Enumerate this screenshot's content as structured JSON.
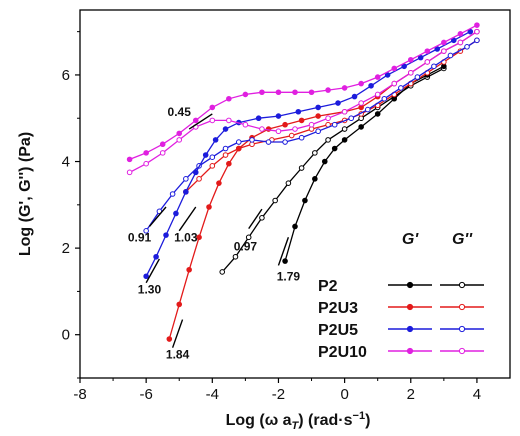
{
  "chart_data": {
    "type": "line",
    "title": "",
    "xlabel": "Log (ω a",
    "xlabel_sub": "T",
    "xlabel_units": ") (rad·s",
    "xlabel_sup": "−1",
    "xlabel_close": ")",
    "ylabel": "Log (G', G'') (Pa)",
    "xlim": [
      -8,
      5
    ],
    "ylim": [
      -1,
      7.5
    ],
    "xticks": [
      -8,
      -6,
      -4,
      -2,
      0,
      2,
      4
    ],
    "xtick_labels": [
      "-8",
      "-6",
      "-4",
      "-2",
      "0",
      "2",
      "4"
    ],
    "yticks": [
      0,
      2,
      4,
      6
    ],
    "ytick_labels": [
      "0",
      "2",
      "4",
      "6"
    ],
    "grid": false,
    "legend_position": "bottom-right",
    "legend_headers": [
      "G'",
      "G''"
    ],
    "series": [
      {
        "name": "P2",
        "color": "#000000",
        "gprime": [
          [
            -1.8,
            1.7
          ],
          [
            -1.5,
            2.5
          ],
          [
            -1.2,
            3.1
          ],
          [
            -0.9,
            3.6
          ],
          [
            -0.6,
            4.0
          ],
          [
            -0.3,
            4.3
          ],
          [
            0,
            4.5
          ],
          [
            0.5,
            4.8
          ],
          [
            1.0,
            5.1
          ],
          [
            1.5,
            5.45
          ],
          [
            2.0,
            5.8
          ],
          [
            2.5,
            6.0
          ],
          [
            3.0,
            6.2
          ]
        ],
        "gdoubleprime": [
          [
            -3.7,
            1.45
          ],
          [
            -3.3,
            1.8
          ],
          [
            -2.9,
            2.25
          ],
          [
            -2.5,
            2.7
          ],
          [
            -2.1,
            3.1
          ],
          [
            -1.7,
            3.5
          ],
          [
            -1.3,
            3.85
          ],
          [
            -0.9,
            4.2
          ],
          [
            -0.5,
            4.5
          ],
          [
            0,
            4.75
          ],
          [
            0.5,
            5.0
          ],
          [
            1.0,
            5.25
          ],
          [
            1.5,
            5.5
          ],
          [
            2.0,
            5.75
          ],
          [
            2.5,
            5.95
          ],
          [
            3.0,
            6.15
          ]
        ]
      },
      {
        "name": "P2U3",
        "color": "#e31a1a",
        "gprime": [
          [
            -5.3,
            -0.1
          ],
          [
            -5.0,
            0.7
          ],
          [
            -4.7,
            1.5
          ],
          [
            -4.4,
            2.25
          ],
          [
            -4.1,
            2.95
          ],
          [
            -3.8,
            3.5
          ],
          [
            -3.5,
            3.95
          ],
          [
            -3.2,
            4.3
          ],
          [
            -2.8,
            4.55
          ],
          [
            -2.3,
            4.75
          ],
          [
            -1.8,
            4.85
          ],
          [
            -1.3,
            4.95
          ],
          [
            -0.8,
            5.05
          ],
          [
            0,
            5.15
          ],
          [
            0.5,
            5.25
          ],
          [
            1.0,
            5.5
          ],
          [
            1.5,
            5.8
          ],
          [
            2.0,
            6.05
          ],
          [
            2.5,
            6.3
          ],
          [
            3.0,
            6.55
          ],
          [
            3.5,
            6.75
          ],
          [
            4.0,
            7.0
          ]
        ],
        "gdoubleprime": [
          [
            -4.8,
            3.3
          ],
          [
            -4.4,
            3.6
          ],
          [
            -4.0,
            3.9
          ],
          [
            -3.6,
            4.15
          ],
          [
            -3.2,
            4.3
          ],
          [
            -2.8,
            4.4
          ],
          [
            -2.2,
            4.5
          ],
          [
            -1.6,
            4.6
          ],
          [
            -1.0,
            4.75
          ],
          [
            -0.5,
            4.85
          ],
          [
            0,
            4.95
          ],
          [
            0.5,
            5.1
          ],
          [
            1.0,
            5.3
          ],
          [
            1.5,
            5.55
          ],
          [
            2.0,
            5.8
          ],
          [
            2.5,
            6.05
          ],
          [
            3.0,
            6.3
          ],
          [
            3.5,
            6.55
          ],
          [
            4.0,
            6.8
          ]
        ]
      },
      {
        "name": "P2U5",
        "color": "#1c1cdc",
        "gprime": [
          [
            -6.0,
            1.35
          ],
          [
            -5.7,
            1.8
          ],
          [
            -5.4,
            2.3
          ],
          [
            -5.1,
            2.8
          ],
          [
            -4.8,
            3.3
          ],
          [
            -4.5,
            3.75
          ],
          [
            -4.2,
            4.15
          ],
          [
            -3.9,
            4.5
          ],
          [
            -3.6,
            4.75
          ],
          [
            -3.2,
            4.9
          ],
          [
            -2.6,
            5.0
          ],
          [
            -2.0,
            5.05
          ],
          [
            -1.4,
            5.15
          ],
          [
            -0.8,
            5.25
          ],
          [
            -0.2,
            5.35
          ],
          [
            0.3,
            5.5
          ],
          [
            0.8,
            5.75
          ],
          [
            1.3,
            6.0
          ],
          [
            1.8,
            6.2
          ],
          [
            2.3,
            6.4
          ],
          [
            2.8,
            6.6
          ],
          [
            3.3,
            6.8
          ],
          [
            3.8,
            7.0
          ]
        ],
        "gdoubleprime": [
          [
            -6.0,
            2.4
          ],
          [
            -5.6,
            2.85
          ],
          [
            -5.2,
            3.25
          ],
          [
            -4.8,
            3.6
          ],
          [
            -4.4,
            3.9
          ],
          [
            -4.0,
            4.1
          ],
          [
            -3.6,
            4.3
          ],
          [
            -3.2,
            4.45
          ],
          [
            -2.8,
            4.5
          ],
          [
            -2.3,
            4.45
          ],
          [
            -1.8,
            4.45
          ],
          [
            -1.3,
            4.55
          ],
          [
            -0.8,
            4.7
          ],
          [
            -0.3,
            4.85
          ],
          [
            0.2,
            5.0
          ],
          [
            0.7,
            5.2
          ],
          [
            1.2,
            5.45
          ],
          [
            1.7,
            5.7
          ],
          [
            2.2,
            5.95
          ],
          [
            2.7,
            6.2
          ],
          [
            3.2,
            6.45
          ],
          [
            3.7,
            6.65
          ],
          [
            4.0,
            6.8
          ]
        ]
      },
      {
        "name": "P2U10",
        "color": "#e020e0",
        "gprime": [
          [
            -6.5,
            4.05
          ],
          [
            -6.0,
            4.2
          ],
          [
            -5.5,
            4.4
          ],
          [
            -5.0,
            4.65
          ],
          [
            -4.5,
            4.95
          ],
          [
            -4.0,
            5.25
          ],
          [
            -3.5,
            5.45
          ],
          [
            -3.0,
            5.55
          ],
          [
            -2.5,
            5.6
          ],
          [
            -2.0,
            5.6
          ],
          [
            -1.5,
            5.6
          ],
          [
            -1.0,
            5.6
          ],
          [
            -0.5,
            5.65
          ],
          [
            0,
            5.7
          ],
          [
            0.5,
            5.8
          ],
          [
            1.0,
            5.95
          ],
          [
            1.5,
            6.15
          ],
          [
            2.0,
            6.35
          ],
          [
            2.5,
            6.55
          ],
          [
            3.0,
            6.75
          ],
          [
            3.5,
            6.95
          ],
          [
            4.0,
            7.15
          ]
        ],
        "gdoubleprime": [
          [
            -6.5,
            3.75
          ],
          [
            -6.0,
            3.95
          ],
          [
            -5.5,
            4.2
          ],
          [
            -5.0,
            4.5
          ],
          [
            -4.5,
            4.8
          ],
          [
            -4.0,
            4.95
          ],
          [
            -3.5,
            4.95
          ],
          [
            -3.0,
            4.85
          ],
          [
            -2.5,
            4.75
          ],
          [
            -2.0,
            4.7
          ],
          [
            -1.5,
            4.75
          ],
          [
            -1.0,
            4.85
          ],
          [
            -0.5,
            5.0
          ],
          [
            0,
            5.15
          ],
          [
            0.5,
            5.35
          ],
          [
            1.0,
            5.55
          ],
          [
            1.5,
            5.8
          ],
          [
            2.0,
            6.05
          ],
          [
            2.5,
            6.3
          ],
          [
            3.0,
            6.55
          ],
          [
            3.5,
            6.75
          ],
          [
            4.0,
            7.0
          ]
        ]
      }
    ],
    "annotations": [
      {
        "text": "0.45",
        "line": [
          [
            -4.7,
            4.75
          ],
          [
            -4.0,
            5.1
          ]
        ],
        "label_at": [
          -5.0,
          5.05
        ]
      },
      {
        "text": "0.91",
        "line": [
          [
            -5.9,
            2.5
          ],
          [
            -5.4,
            2.95
          ]
        ],
        "label_at": [
          -6.2,
          2.15
        ]
      },
      {
        "text": "1.03",
        "line": [
          [
            -5.0,
            2.4
          ],
          [
            -4.5,
            2.95
          ]
        ],
        "label_at": [
          -4.8,
          2.15
        ]
      },
      {
        "text": "1.30",
        "line": [
          [
            -6.0,
            1.2
          ],
          [
            -5.6,
            1.75
          ]
        ],
        "label_at": [
          -5.9,
          0.95
        ]
      },
      {
        "text": "1.84",
        "line": [
          [
            -5.2,
            -0.3
          ],
          [
            -4.9,
            0.35
          ]
        ],
        "label_at": [
          -5.05,
          -0.55
        ]
      },
      {
        "text": "0.97",
        "line": [
          [
            -2.9,
            2.45
          ],
          [
            -2.5,
            2.9
          ]
        ],
        "label_at": [
          -3.0,
          1.95
        ]
      },
      {
        "text": "1.79",
        "line": [
          [
            -2.0,
            1.6
          ],
          [
            -1.7,
            2.25
          ]
        ],
        "label_at": [
          -1.7,
          1.25
        ]
      }
    ]
  }
}
